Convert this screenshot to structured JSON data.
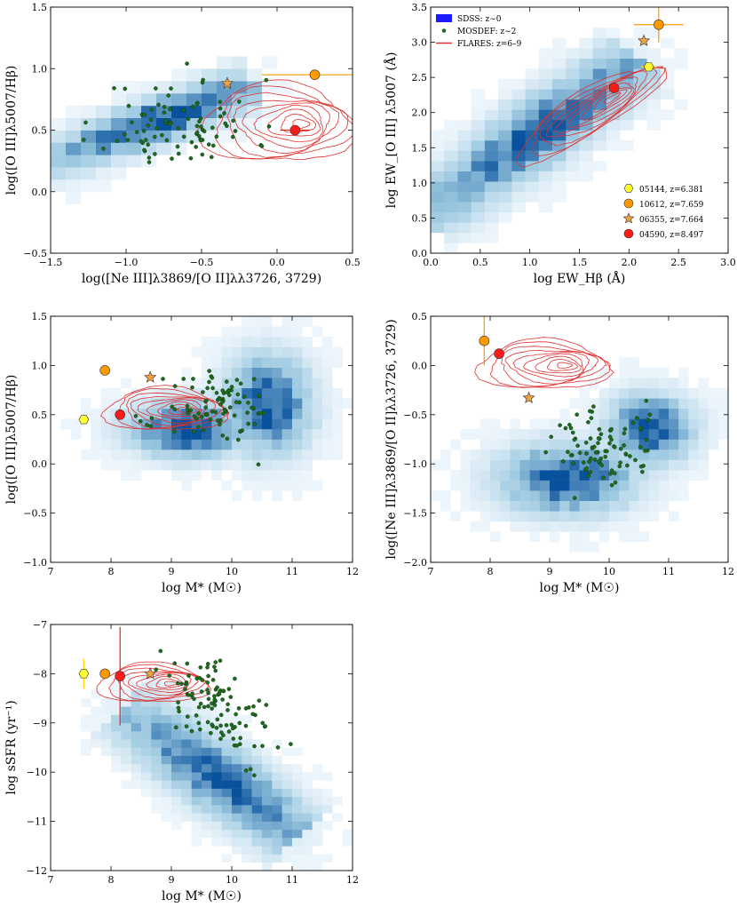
{
  "chart_data": [
    {
      "id": "p1",
      "type": "scatter",
      "title": "",
      "xlabel": "log([Ne III]λ3869/[O II]λλ3726, 3729)",
      "ylabel": "log([O III]λ5007/Hβ)",
      "xlim": [
        -1.5,
        0.5
      ],
      "ylim": [
        -0.5,
        1.5
      ],
      "xticks": [
        -1.5,
        -1.0,
        -0.5,
        0.0,
        0.5
      ],
      "xtick_labels": [
        "−1.5",
        "−1.0",
        "−0.5",
        "0.0",
        "0.5"
      ],
      "yticks": [
        -0.5,
        0.0,
        0.5,
        1.0,
        1.5
      ],
      "ytick_labels": [
        "−0.5",
        "0.0",
        "0.5",
        "1.0",
        "1.5"
      ],
      "density": {
        "line": [
          [
            -1.5,
            0.25
          ],
          [
            -0.2,
            0.85
          ]
        ],
        "width": 0.25,
        "nx": 20,
        "ny": 20
      },
      "mosdef": {
        "center": [
          -0.65,
          0.55
        ],
        "spread": [
          0.25,
          0.18
        ],
        "n": 90,
        "seed": 11
      },
      "contours": {
        "center": [
          -0.0,
          0.55
        ],
        "radii": [
          0.5,
          0.32
        ],
        "levels": 9
      },
      "galaxies": [
        {
          "id": "10612",
          "x": 0.25,
          "y": 0.95,
          "xerr": 0.35,
          "yerr": 0.0
        },
        {
          "id": "06355",
          "x": -0.33,
          "y": 0.88,
          "xerr": 0.0,
          "yerr": 0.05
        },
        {
          "id": "04590",
          "x": 0.12,
          "y": 0.5,
          "xerr": 0.1,
          "yerr": 0.0
        }
      ]
    },
    {
      "id": "p2",
      "type": "scatter",
      "title": "",
      "xlabel": "log EW_Hβ (Å)",
      "ylabel": "log EW_[O III] λ5007 (Å)",
      "xlim": [
        0.0,
        3.0
      ],
      "ylim": [
        0.0,
        3.5
      ],
      "xticks": [
        0.0,
        0.5,
        1.0,
        1.5,
        2.0,
        2.5,
        3.0
      ],
      "xtick_labels": [
        "0.0",
        "0.5",
        "1.0",
        "1.5",
        "2.0",
        "2.5",
        "3.0"
      ],
      "yticks": [
        0.0,
        0.5,
        1.0,
        1.5,
        2.0,
        2.5,
        3.0,
        3.5
      ],
      "ytick_labels": [
        "0.0",
        "0.5",
        "1.0",
        "1.5",
        "2.0",
        "2.5",
        "3.0",
        "3.5"
      ],
      "density": {
        "line": [
          [
            0.0,
            0.6
          ],
          [
            2.0,
            2.65
          ]
        ],
        "width": 0.35,
        "nx": 22,
        "ny": 24
      },
      "contours": {
        "center": [
          1.6,
          2.0
        ],
        "radii": [
          0.85,
          0.3
        ],
        "levels": 9,
        "tilt": 0.88
      },
      "galaxies": [
        {
          "id": "10612",
          "x": 2.3,
          "y": 3.25,
          "xerr": 0.25,
          "yerr": 0.25
        },
        {
          "id": "06355",
          "x": 2.15,
          "y": 3.02,
          "xerr": 0.0,
          "yerr": 0.0
        },
        {
          "id": "05144",
          "x": 2.2,
          "y": 2.65,
          "xerr": 0.08,
          "yerr": 0.0
        },
        {
          "id": "04590",
          "x": 1.85,
          "y": 2.35,
          "xerr": 0.0,
          "yerr": 0.0
        }
      ],
      "legend": {
        "position": "top-left",
        "entries": [
          {
            "label": "SDSS: z∼0",
            "marker": "patch",
            "color": "#1a1aff"
          },
          {
            "label": "MOSDEF: z∼2",
            "marker": "dot",
            "color": "#1e6b1e"
          },
          {
            "label": "FLARES: z=6–9",
            "marker": "line",
            "color": "#e03030"
          }
        ]
      },
      "galaxy_legend": {
        "position": "bottom-right",
        "entries": [
          {
            "id": "05144",
            "label": "05144,  z=6.381"
          },
          {
            "id": "10612",
            "label": "10612,  z=7.659"
          },
          {
            "id": "06355",
            "label": "06355,  z=7.664"
          },
          {
            "id": "04590",
            "label": "04590,  z=8.497"
          }
        ]
      }
    },
    {
      "id": "p3",
      "type": "scatter",
      "title": "",
      "xlabel": "log M* (M☉)",
      "ylabel": "log([O III]λ5007/Hβ)",
      "xlim": [
        7,
        12
      ],
      "ylim": [
        -1.0,
        1.5
      ],
      "xticks": [
        7,
        8,
        9,
        10,
        11,
        12
      ],
      "xtick_labels": [
        "7",
        "8",
        "9",
        "10",
        "11",
        "12"
      ],
      "yticks": [
        -1.0,
        -0.5,
        0.0,
        0.5,
        1.0,
        1.5
      ],
      "ytick_labels": [
        "−1.0",
        "−0.5",
        "0.0",
        "0.5",
        "1.0",
        "1.5"
      ],
      "density": {
        "blobs": [
          [
            9.3,
            0.35,
            0.7,
            0.2
          ],
          [
            10.6,
            0.6,
            0.5,
            0.35
          ]
        ],
        "nx": 30,
        "ny": 24
      },
      "mosdef": {
        "center": [
          9.8,
          0.55
        ],
        "spread": [
          0.45,
          0.18
        ],
        "n": 90,
        "seed": 21
      },
      "contours": {
        "center": [
          8.9,
          0.55
        ],
        "radii": [
          1.0,
          0.22
        ],
        "levels": 9
      },
      "galaxies": [
        {
          "id": "05144",
          "x": 7.55,
          "y": 0.45,
          "xerr": 0.0,
          "yerr": 0.0
        },
        {
          "id": "10612",
          "x": 7.9,
          "y": 0.95,
          "xerr": 0.0,
          "yerr": 0.0
        },
        {
          "id": "06355",
          "x": 8.65,
          "y": 0.88,
          "xerr": 0.0,
          "yerr": 0.0
        },
        {
          "id": "04590",
          "x": 8.15,
          "y": 0.5,
          "xerr": 0.0,
          "yerr": 0.0
        }
      ]
    },
    {
      "id": "p4",
      "type": "scatter",
      "title": "",
      "xlabel": "log M* (M☉)",
      "ylabel": "log([Ne III]λ3869/[O II]λλ3726, 3729)",
      "xlim": [
        7,
        12
      ],
      "ylim": [
        -2.0,
        0.5
      ],
      "xticks": [
        7,
        8,
        9,
        10,
        11,
        12
      ],
      "xtick_labels": [
        "7",
        "8",
        "9",
        "10",
        "11",
        "12"
      ],
      "yticks": [
        -2.0,
        -1.5,
        -1.0,
        -0.5,
        0.0,
        0.5
      ],
      "ytick_labels": [
        "−2.0",
        "−1.5",
        "−1.0",
        "−0.5",
        "0.0",
        "0.5"
      ],
      "density": {
        "blobs": [
          [
            9.3,
            -1.15,
            0.8,
            0.25
          ],
          [
            10.7,
            -0.65,
            0.5,
            0.25
          ]
        ],
        "nx": 30,
        "ny": 24
      },
      "mosdef": {
        "center": [
          9.9,
          -0.85
        ],
        "spread": [
          0.45,
          0.2
        ],
        "n": 90,
        "seed": 31
      },
      "contours": {
        "center": [
          8.9,
          0.0
        ],
        "radii": [
          1.1,
          0.25
        ],
        "levels": 9
      },
      "galaxies": [
        {
          "id": "10612",
          "x": 7.9,
          "y": 0.25,
          "xerr": 0.0,
          "yerr": 0.25
        },
        {
          "id": "06355",
          "x": 8.65,
          "y": -0.33,
          "xerr": 0.0,
          "yerr": 0.0
        },
        {
          "id": "04590",
          "x": 8.15,
          "y": 0.12,
          "xerr": 0.0,
          "yerr": 0.05
        }
      ]
    },
    {
      "id": "p5",
      "type": "scatter",
      "title": "",
      "xlabel": "log M* (M☉)",
      "ylabel": "log sSFR (yr⁻¹)",
      "xlim": [
        7,
        12
      ],
      "ylim": [
        -12,
        -7
      ],
      "xticks": [
        7,
        8,
        9,
        10,
        11,
        12
      ],
      "xtick_labels": [
        "7",
        "8",
        "9",
        "10",
        "11",
        "12"
      ],
      "yticks": [
        -12,
        -11,
        -10,
        -9,
        -8,
        -7
      ],
      "ytick_labels": [
        "−12",
        "−11",
        "−10",
        "−9",
        "−8",
        "−7"
      ],
      "density": {
        "line": [
          [
            8.3,
            -8.8
          ],
          [
            11.0,
            -11.2
          ]
        ],
        "width": 0.35,
        "nx": 30,
        "ny": 30
      },
      "mosdef": {
        "center": [
          9.8,
          -8.7
        ],
        "spread": [
          0.45,
          0.4
        ],
        "n": 110,
        "seed": 41,
        "tilt": -0.6
      },
      "contours": {
        "center": [
          8.7,
          -8.2
        ],
        "radii": [
          0.9,
          0.4
        ],
        "levels": 9
      },
      "galaxies": [
        {
          "id": "05144",
          "x": 7.55,
          "y": -8.0,
          "xerr": 0.0,
          "yerr": 0.3
        },
        {
          "id": "10612",
          "x": 7.9,
          "y": -8.0,
          "xerr": 0.0,
          "yerr": 0.0
        },
        {
          "id": "06355",
          "x": 8.65,
          "y": -8.0,
          "xerr": 0.0,
          "yerr": 0.0
        },
        {
          "id": "04590",
          "x": 8.15,
          "y": -8.05,
          "xerr": 0.0,
          "yerr": 1.0
        }
      ]
    }
  ],
  "colors": {
    "sdss": "#08519c",
    "mosdef": "#1e6b1e",
    "flares": "#e03030",
    "g05144": "#ffff33",
    "g10612": "#ff9900",
    "g06355": "#f0a040",
    "g04590": "#ff1a1a",
    "err10612": "#ff9900",
    "err05144": "#ffd700",
    "err04590": "#e02020"
  },
  "markers": {
    "05144": "hexagon",
    "10612": "circle",
    "06355": "star",
    "04590": "circle"
  }
}
